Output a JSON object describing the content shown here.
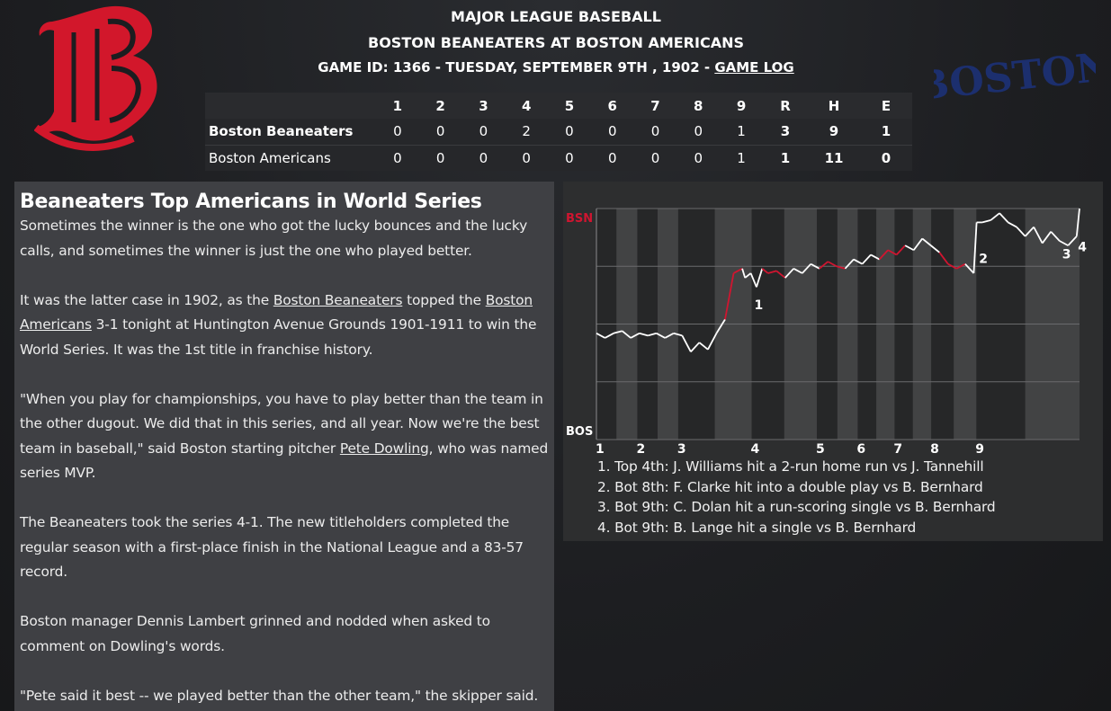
{
  "header": {
    "league": "MAJOR LEAGUE BASEBALL",
    "matchup": "BOSTON BEANEATERS AT BOSTON AMERICANS",
    "game_info": "GAME ID: 1366 - TUESDAY, SEPTEMBER 9TH , 1902 - ",
    "game_log_link": "GAME LOG"
  },
  "logos": {
    "left_icon": "red-gothic-b-logo-icon",
    "right_text": "BOSTON",
    "left_color": "#d2172b",
    "right_color": "#1c2f6e"
  },
  "linescore": {
    "columns": [
      "1",
      "2",
      "3",
      "4",
      "5",
      "6",
      "7",
      "8",
      "9",
      "R",
      "H",
      "E"
    ],
    "rows": [
      {
        "team": "Boston Beaneaters",
        "values": [
          "0",
          "0",
          "0",
          "2",
          "0",
          "0",
          "0",
          "0",
          "1",
          "3",
          "9",
          "1"
        ]
      },
      {
        "team": "Boston Americans",
        "values": [
          "0",
          "0",
          "0",
          "0",
          "0",
          "0",
          "0",
          "0",
          "1",
          "1",
          "11",
          "0"
        ]
      }
    ]
  },
  "article": {
    "headline": "Beaneaters Top Americans in World Series",
    "p1": "Sometimes the winner is the one who got the lucky bounces and the lucky calls, and sometimes the winner is just the one who played better.",
    "p2_a": "It was the latter case in 1902, as the ",
    "p2_link1": "Boston Beaneaters",
    "p2_b": " topped the ",
    "p2_link2": "Boston Americans",
    "p2_c": " 3-1 tonight at Huntington Avenue Grounds 1901-1911 to win the World Series. It was the 1st title in franchise history.",
    "p3_a": "\"When you play for championships, you have to play better than the team in the other dugout. We did that in this series, and all year. Now we're the best team in baseball,\" said Boston starting pitcher ",
    "p3_link": "Pete Dowling",
    "p3_b": ", who was named series MVP.",
    "p4": "The Beaneaters took the series 4-1. The new titleholders completed the regular season with a first-place finish in the National League and a 83-57 record.",
    "p5": "Boston manager Dennis Lambert grinned and nodded when asked to comment on Dowling's words.",
    "p6": "\"Pete said it best -- we played better than the other team,\" the skipper said."
  },
  "chart_data": {
    "type": "line",
    "top_label": "BSN",
    "bottom_label": "BOS",
    "x_ticks": [
      "1",
      "2",
      "3",
      "4",
      "5",
      "6",
      "7",
      "8",
      "9"
    ],
    "x_tick_positions": [
      0,
      1.43,
      2.86,
      5.43,
      7.71,
      9.14,
      10.43,
      11.71,
      13.29
    ],
    "ylim": [
      0,
      1
    ],
    "series_color_above": "#d01530",
    "series_color_below": "#ffffff",
    "x": [
      0,
      0.3,
      0.6,
      0.9,
      1.2,
      1.5,
      1.8,
      2.1,
      2.4,
      2.7,
      3.0,
      3.3,
      3.6,
      3.9,
      4.2,
      4.5,
      4.8,
      5.1,
      5.2,
      5.4,
      5.6,
      5.8,
      6.0,
      6.3,
      6.6,
      6.9,
      7.2,
      7.5,
      7.8,
      8.1,
      8.4,
      8.7,
      9.0,
      9.3,
      9.6,
      9.9,
      10.2,
      10.5,
      10.8,
      11.1,
      11.4,
      11.7,
      12.0,
      12.3,
      12.6,
      12.9,
      13.2,
      13.3,
      13.5,
      13.8,
      14.1,
      14.4,
      14.7,
      15.0,
      15.3,
      15.6,
      15.9,
      16.2,
      16.5,
      16.8,
      16.9
    ],
    "y": [
      0.46,
      0.44,
      0.46,
      0.47,
      0.44,
      0.46,
      0.45,
      0.46,
      0.44,
      0.46,
      0.45,
      0.38,
      0.42,
      0.39,
      0.46,
      0.52,
      0.72,
      0.74,
      0.7,
      0.72,
      0.66,
      0.74,
      0.72,
      0.73,
      0.7,
      0.74,
      0.72,
      0.76,
      0.74,
      0.77,
      0.75,
      0.74,
      0.78,
      0.76,
      0.8,
      0.78,
      0.82,
      0.8,
      0.84,
      0.82,
      0.87,
      0.84,
      0.81,
      0.76,
      0.74,
      0.76,
      0.72,
      0.94,
      0.94,
      0.95,
      0.98,
      0.94,
      0.92,
      0.88,
      0.92,
      0.85,
      0.9,
      0.86,
      0.84,
      0.88,
      1.0
    ],
    "markers": [
      {
        "label": "1",
        "x": 5.43,
        "y": 0.58
      },
      {
        "label": "2",
        "x": 13.29,
        "y": 0.78
      },
      {
        "label": "3",
        "x": 16.2,
        "y": 0.8
      },
      {
        "label": "4",
        "x": 16.75,
        "y": 0.83
      }
    ]
  },
  "events": [
    "1. Top 4th: J. Williams hit a 2-run home run vs J. Tannehill",
    "2. Bot 8th: F. Clarke hit into a double play vs B. Bernhard",
    "3. Bot 9th: C. Dolan hit a run-scoring single vs B. Bernhard",
    "4. Bot 9th: B. Lange hit a single vs B. Bernhard"
  ]
}
